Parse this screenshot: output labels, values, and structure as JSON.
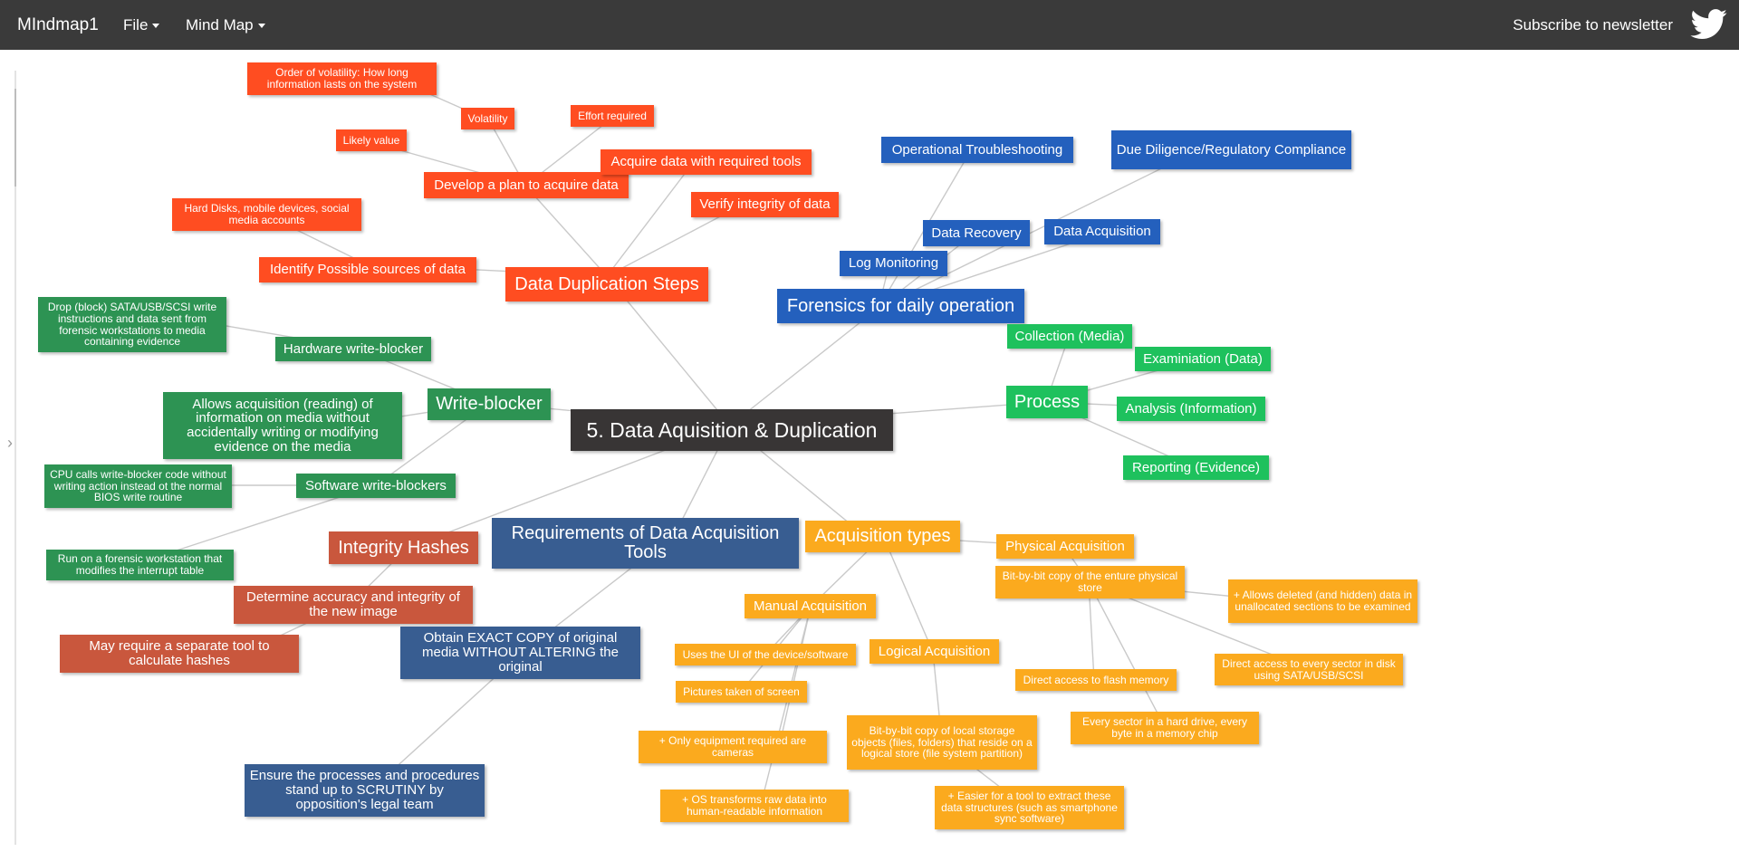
{
  "nav": {
    "brand": "MIndmap1",
    "file_menu": "File",
    "mindmap_menu": "Mind Map",
    "subscribe": "Subscribe to newsletter"
  },
  "colors": {
    "root": "#383535",
    "red": "#ff4d21",
    "blue": "#2460bd",
    "green_light": "#1ec15d",
    "green_dark": "#2d9353",
    "orange": "#fbaa1e",
    "brick": "#c9573d",
    "navy": "#385d91"
  },
  "icons": {
    "twitter": "twitter-bird-icon",
    "caret": "caret-down-icon",
    "panel_toggle": "chevron-right-icon"
  },
  "mindmap": {
    "root": "5. Data Aquisition & Duplication",
    "data_duplication": {
      "title": "Data Duplication Steps",
      "identify": "Identify Possible sources of data",
      "identify_detail": "Hard Disks, mobile devices, social media accounts",
      "develop": "Develop a plan to acquire data",
      "likely_value": "Likely value",
      "volatility": "Volatility",
      "volatility_detail": "Order of volatility: How long information lasts on the system",
      "effort": "Effort required",
      "acquire": "Acquire data with required tools",
      "verify": "Verify integrity of data"
    },
    "forensics": {
      "title": "Forensics for daily operation",
      "troubleshooting": "Operational Troubleshooting",
      "due_diligence": "Due Diligence/Regulatory Compliance",
      "recovery": "Data Recovery",
      "acquisition": "Data Acquisition",
      "log_monitoring": "Log Monitoring"
    },
    "process": {
      "title": "Process",
      "collection": "Collection (Media)",
      "examination": "Examiniation (Data)",
      "analysis": "Analysis (Information)",
      "reporting": "Reporting (Evidence)"
    },
    "write_blocker": {
      "title": "Write-blocker",
      "hardware": "Hardware write-blocker",
      "hardware_detail": "Drop (block) SATA/USB/SCSI write instructions and data sent from forensic workstations to media containing evidence",
      "allows": "Allows acquisition (reading) of information on media without accidentally writing or modifying evidence on the media",
      "software": "Software write-blockers",
      "software_detail": "CPU calls write-blocker code without writing action instead ot the normal BIOS write routine",
      "workstation": "Run on a forensic workstation that modifies the interrupt table"
    },
    "integrity": {
      "title": "Integrity Hashes",
      "accuracy": "Determine accuracy and integrity of the new image",
      "separate_tool": "May require a separate tool to calculate hashes"
    },
    "requirements": {
      "title": "Requirements of Data Acquisition Tools",
      "exact_copy": "Obtain EXACT COPY of original media WITHOUT ALTERING the original",
      "scrutiny": "Ensure the processes and procedures stand up to SCRUTINY by opposition's legal team"
    },
    "acquisition_types": {
      "title": "Acquisition types",
      "physical": "Physical Acquisition",
      "physical_detail": "Bit-by-bit copy of the enture physical store",
      "physical_deleted": "+ Allows deleted (and hidden) data in unallocated sections to be examined",
      "sector_access": "Direct access to every sector in disk using SATA/USB/SCSI",
      "flash_access": "Direct access to flash memory",
      "every_sector": "Every sector in a hard drive, every byte in a memory chip",
      "manual": "Manual Acquisition",
      "manual_ui": "Uses the UI of the device/software",
      "manual_pictures": "Pictures taken of screen",
      "manual_cameras": "+ Only equipment required are cameras",
      "manual_os": "+ OS transforms raw data into human-readable information",
      "logical": "Logical Acquisition",
      "logical_detail": "Bit-by-bit copy of local storage objects (files, folders) that reside on a logical store (file system partition)",
      "logical_easier": "+ Easier for a tool to extract these data structures (such as smartphone sync software)"
    }
  }
}
